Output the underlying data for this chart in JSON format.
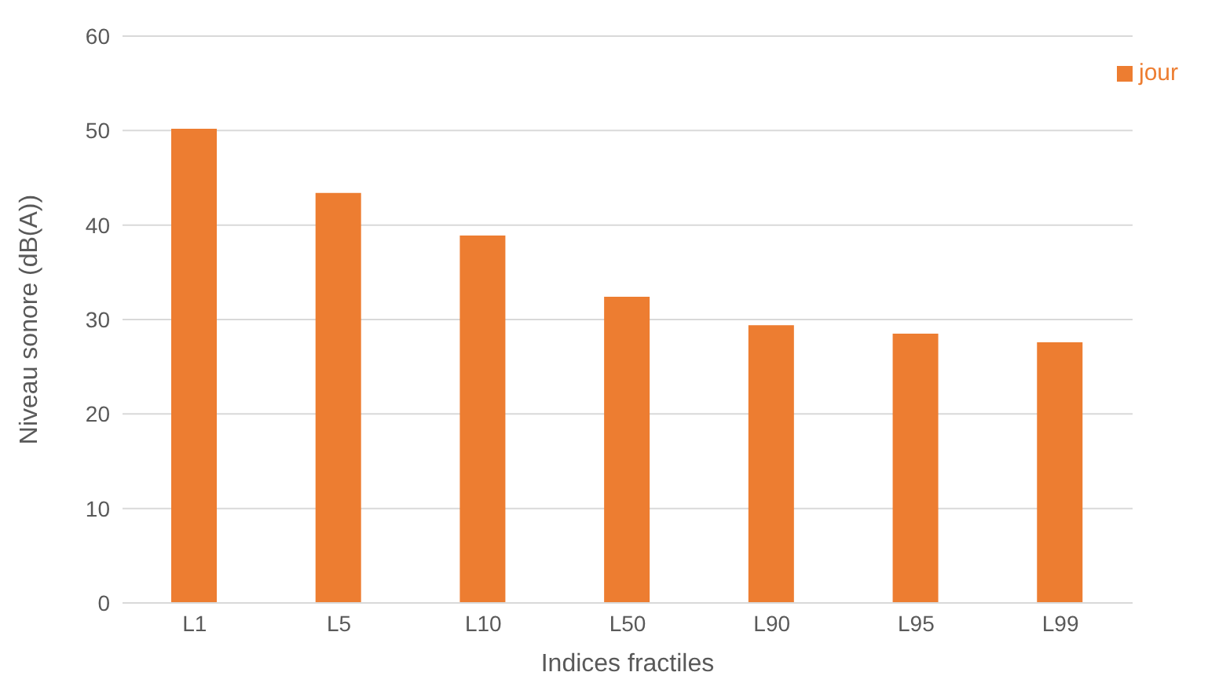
{
  "chart_data": {
    "type": "bar",
    "xlabel": "Indices fractiles",
    "ylabel": "Niveau sonore (dB(A))",
    "categories": [
      "L1",
      "L5",
      "L10",
      "L50",
      "L90",
      "L95",
      "L99"
    ],
    "series": [
      {
        "name": "jour",
        "color": "#ed7d31",
        "values": [
          50.2,
          43.4,
          38.9,
          32.4,
          29.4,
          28.5,
          27.6
        ]
      }
    ],
    "ylim": [
      0,
      60
    ],
    "yticks": [
      0,
      10,
      20,
      30,
      40,
      50,
      60
    ],
    "grid": "y",
    "legend": "top right"
  }
}
